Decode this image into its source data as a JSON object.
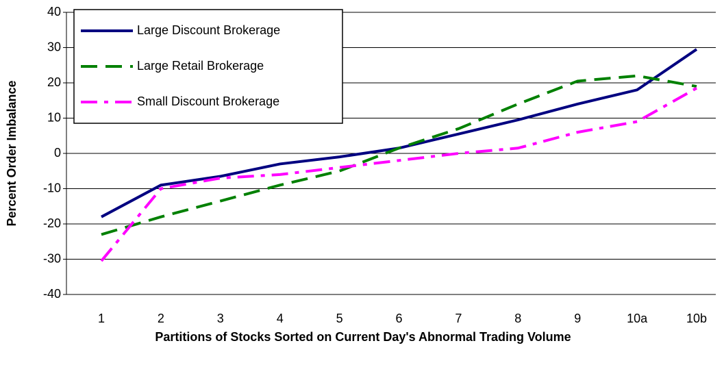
{
  "chart_data": {
    "type": "line",
    "xlabel": "Partitions of Stocks Sorted on Current Day's Abnormal Trading Volume",
    "ylabel": "Percent Order Imbalance",
    "categories": [
      "1",
      "2",
      "3",
      "4",
      "5",
      "6",
      "7",
      "8",
      "9",
      "10a",
      "10b"
    ],
    "series": [
      {
        "name": "Large Discount Brokerage",
        "color": "#000080",
        "dash": "solid",
        "values": [
          -18,
          -9,
          -6.5,
          -3,
          -1,
          1.5,
          5.5,
          9.5,
          14,
          18,
          29.5
        ]
      },
      {
        "name": "Large Retail Brokerage",
        "color": "#008000",
        "dash": "dashed",
        "values": [
          -23,
          -18,
          -13.5,
          -9,
          -5,
          1.5,
          7,
          14,
          20.5,
          22,
          19
        ]
      },
      {
        "name": "Small Discount Brokerage",
        "color": "#ff00ff",
        "dash": "dashdot",
        "values": [
          -30.5,
          -10,
          -7,
          -6,
          -4,
          -2,
          0,
          1.5,
          6,
          9,
          18.5
        ]
      }
    ],
    "ylim": [
      -40,
      40
    ],
    "yticks": [
      -40,
      -30,
      -20,
      -10,
      0,
      10,
      20,
      30,
      40
    ],
    "grid": true,
    "legend": "upper left"
  }
}
